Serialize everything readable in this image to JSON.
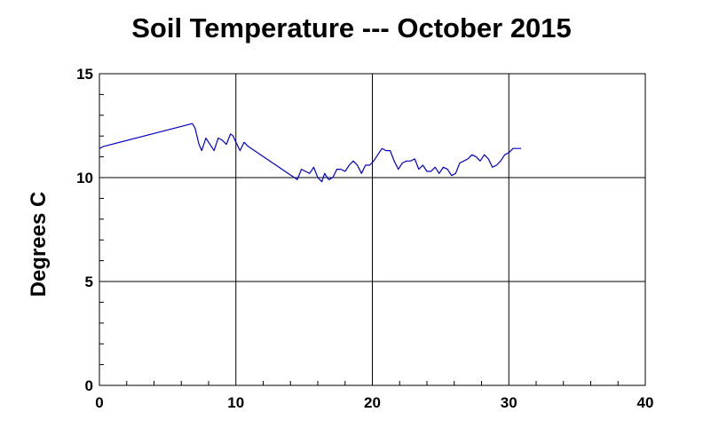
{
  "chart_data": {
    "type": "line",
    "title": "Soil Temperature --- October 2015",
    "xlabel": "",
    "ylabel": "Degrees C",
    "xlim": [
      0,
      40
    ],
    "ylim": [
      0,
      15
    ],
    "xticks": [
      0,
      10,
      20,
      30,
      40
    ],
    "yticks": [
      0,
      5,
      10,
      15
    ],
    "grid": true,
    "line_color": "#0000cc",
    "series": [
      {
        "x": [
          0,
          0.3,
          6.8,
          7.0,
          7.3,
          7.5,
          7.8,
          8.1,
          8.4,
          8.7,
          9.0,
          9.3,
          9.6,
          9.8,
          10.0,
          10.3,
          10.6,
          10.9,
          14.5,
          14.8,
          15.1,
          15.4,
          15.7,
          16.0,
          16.3,
          16.5,
          16.8,
          17.1,
          17.4,
          17.7,
          18.0,
          18.3,
          18.6,
          18.9,
          19.2,
          19.5,
          19.8,
          20.1,
          20.4,
          20.7,
          21.0,
          21.3,
          21.6,
          21.9,
          22.2,
          22.5,
          22.8,
          23.1,
          23.4,
          23.7,
          24.0,
          24.3,
          24.6,
          24.9,
          25.2,
          25.5,
          25.8,
          26.1,
          26.4,
          26.7,
          27.0,
          27.3,
          27.6,
          27.9,
          28.2,
          28.5,
          28.8,
          29.1,
          29.4,
          29.7,
          30.0,
          30.3,
          30.6,
          30.9
        ],
        "y": [
          11.4,
          11.5,
          12.6,
          12.4,
          11.6,
          11.3,
          11.9,
          11.6,
          11.3,
          11.9,
          11.8,
          11.6,
          12.1,
          12.0,
          11.7,
          11.3,
          11.7,
          11.5,
          9.9,
          10.4,
          10.3,
          10.2,
          10.5,
          10.0,
          9.8,
          10.2,
          9.9,
          10.0,
          10.4,
          10.4,
          10.3,
          10.6,
          10.8,
          10.6,
          10.2,
          10.6,
          10.6,
          10.8,
          11.1,
          11.4,
          11.3,
          11.3,
          10.8,
          10.4,
          10.7,
          10.8,
          10.8,
          10.9,
          10.4,
          10.6,
          10.3,
          10.3,
          10.5,
          10.2,
          10.5,
          10.4,
          10.1,
          10.2,
          10.7,
          10.8,
          10.9,
          11.1,
          11.0,
          10.8,
          11.1,
          10.9,
          10.5,
          10.6,
          10.8,
          11.1,
          11.2,
          11.4,
          11.4,
          11.4
        ]
      }
    ]
  }
}
